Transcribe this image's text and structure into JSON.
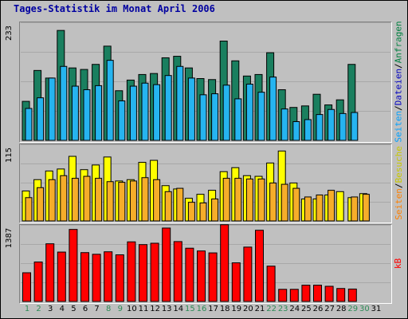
{
  "title": "Tages-Statistik im Monat April 2006",
  "colors": {
    "anfragen": "#1a7f5f",
    "dateien": "#26b4f0",
    "seiten": "#f6ad2a",
    "besuche": "#ffff00",
    "kb": "#ff0000",
    "weekend_label": "#2e8b57",
    "title": "#0000a0"
  },
  "legend": {
    "top": [
      "Seiten",
      "/",
      "Dateien",
      "/",
      "Anfragen"
    ],
    "top_colors": [
      "#00a0ff",
      "#000000",
      "#0000c0",
      "#000000",
      "#008040"
    ],
    "middle": [
      "Seiten",
      "/",
      "Besuche"
    ],
    "middle_colors": [
      "#ff8000",
      "#000000",
      "#c8c800"
    ],
    "bottom": [
      "kB"
    ],
    "bottom_colors": [
      "#ff0000"
    ]
  },
  "chart_data": [
    {
      "type": "bar",
      "y_max_label": "233",
      "ylim": [
        0,
        233
      ],
      "grid": true,
      "categories": [
        "1",
        "2",
        "3",
        "4",
        "5",
        "6",
        "7",
        "8",
        "9",
        "10",
        "11",
        "12",
        "13",
        "14",
        "15",
        "16",
        "17",
        "18",
        "19",
        "20",
        "21",
        "22",
        "23",
        "24",
        "25",
        "26",
        "27",
        "28",
        "29",
        "30",
        "31"
      ],
      "weekend_days": [
        "1",
        "2",
        "8",
        "9",
        "15",
        "16",
        "22",
        "23",
        "29",
        "30"
      ],
      "series": [
        {
          "name": "Anfragen",
          "values": [
            77,
            138,
            123,
            217,
            143,
            140,
            150,
            186,
            98,
            119,
            130,
            132,
            163,
            166,
            143,
            122,
            120,
            196,
            157,
            127,
            130,
            173,
            100,
            65,
            68,
            91,
            70,
            80,
            150,
            0,
            0
          ]
        },
        {
          "name": "Dateien",
          "values": [
            63,
            84,
            123,
            146,
            107,
            100,
            108,
            158,
            78,
            107,
            113,
            110,
            128,
            146,
            123,
            90,
            92,
            109,
            82,
            111,
            95,
            125,
            62,
            37,
            41,
            51,
            61,
            53,
            55,
            0,
            0
          ]
        }
      ]
    },
    {
      "type": "bar",
      "y_max_label": "115",
      "ylim": [
        0,
        115
      ],
      "grid": true,
      "categories": [
        "1",
        "2",
        "3",
        "4",
        "5",
        "6",
        "7",
        "8",
        "9",
        "10",
        "11",
        "12",
        "13",
        "14",
        "15",
        "16",
        "17",
        "18",
        "19",
        "20",
        "21",
        "22",
        "23",
        "24",
        "25",
        "26",
        "27",
        "28",
        "29",
        "30",
        "31"
      ],
      "series": [
        {
          "name": "Besuche",
          "values": [
            45,
            62,
            75,
            78,
            97,
            77,
            84,
            96,
            60,
            62,
            88,
            91,
            53,
            48,
            34,
            40,
            46,
            74,
            80,
            68,
            67,
            87,
            105,
            57,
            33,
            33,
            39,
            44,
            35,
            41,
            0
          ]
        },
        {
          "name": "Seiten",
          "values": [
            35,
            50,
            62,
            68,
            64,
            67,
            64,
            59,
            58,
            60,
            65,
            62,
            44,
            49,
            28,
            27,
            33,
            64,
            64,
            63,
            63,
            57,
            55,
            49,
            36,
            39,
            46,
            0,
            36,
            40,
            0
          ]
        }
      ]
    },
    {
      "type": "bar",
      "y_max_label": "1387",
      "ylim": [
        0,
        1387
      ],
      "grid": true,
      "categories": [
        "1",
        "2",
        "3",
        "4",
        "5",
        "6",
        "7",
        "8",
        "9",
        "10",
        "11",
        "12",
        "13",
        "14",
        "15",
        "16",
        "17",
        "18",
        "19",
        "20",
        "21",
        "22",
        "23",
        "24",
        "25",
        "26",
        "27",
        "28",
        "29",
        "30",
        "31"
      ],
      "series": [
        {
          "name": "kB",
          "values": [
            520,
            715,
            1045,
            895,
            1305,
            885,
            855,
            900,
            845,
            1080,
            1030,
            1055,
            1330,
            1085,
            965,
            915,
            880,
            1390,
            700,
            985,
            1290,
            640,
            220,
            220,
            295,
            295,
            275,
            235,
            225,
            0,
            0
          ]
        }
      ]
    }
  ]
}
